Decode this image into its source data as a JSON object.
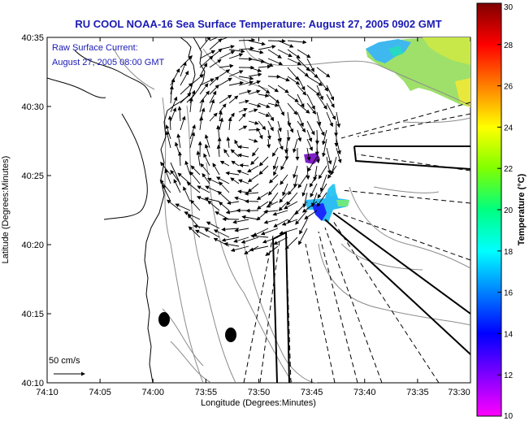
{
  "chart_data": {
    "type": "map",
    "title": "RU COOL  NOAA-16  Sea Surface Temperature:  August 27, 2005 0902 GMT",
    "inset_title": "Raw Surface Current:",
    "inset_date": "August 27, 2005 08:00 GMT",
    "xlabel": "Longitude (Degrees:Minutes)",
    "ylabel": "Latitude (Degrees:Minutes)",
    "x_ticks": [
      "74:10",
      "74:05",
      "74:00",
      "73:55",
      "73:50",
      "73:45",
      "73:40",
      "73:35",
      "73:30"
    ],
    "y_ticks": [
      "40:35",
      "40:30",
      "40:25",
      "40:20",
      "40:15",
      "40:10"
    ],
    "xlim_minutes_west": [
      4450,
      4410
    ],
    "ylim_minutes_north": [
      2410,
      2435
    ],
    "colorbar": {
      "label": "Temperature (°C)",
      "range": [
        10,
        30
      ],
      "ticks": [
        "30",
        "28",
        "26",
        "24",
        "22",
        "20",
        "18",
        "16",
        "14",
        "12",
        "10"
      ]
    },
    "scale_arrow_label": "50 cm/s",
    "current_field": {
      "center_lon_min_w": 4431,
      "center_lat_min_n": 2427.5,
      "radius_min": 7.5,
      "rotation": "clockwise"
    },
    "sst_patches": [
      {
        "lon_min_w": 4414,
        "lat_min_n": 2432,
        "temp_c": 18
      },
      {
        "lon_min_w": 4424,
        "lat_min_n": 2426,
        "temp_c": 12
      },
      {
        "lon_min_w": 4423,
        "lat_min_n": 2423,
        "temp_c": 16
      }
    ]
  },
  "colors": {
    "title": "#1a1ab4",
    "land_edge": "#000000",
    "contour": "#8c8c8c",
    "vector": "#000000"
  }
}
